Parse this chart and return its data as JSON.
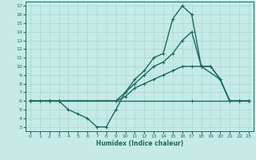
{
  "xlabel": "Humidex (Indice chaleur)",
  "xlim": [
    -0.5,
    23.5
  ],
  "ylim": [
    2.5,
    17.5
  ],
  "yticks": [
    3,
    4,
    5,
    6,
    7,
    8,
    9,
    10,
    11,
    12,
    13,
    14,
    15,
    16,
    17
  ],
  "xticks": [
    0,
    1,
    2,
    3,
    4,
    5,
    6,
    7,
    8,
    9,
    10,
    11,
    12,
    13,
    14,
    15,
    16,
    17,
    18,
    19,
    20,
    21,
    22,
    23
  ],
  "bg_color": "#c6ebe6",
  "grid_color": "#a8d8d2",
  "line_color": "#1a6b5e",
  "line_width": 1.0,
  "marker_size": 2.5,
  "lines": [
    {
      "x": [
        0,
        1,
        2,
        3,
        4,
        5,
        6,
        7,
        8,
        9,
        10,
        11,
        12,
        13,
        14,
        15,
        16,
        17,
        18,
        19,
        20,
        21,
        22,
        23
      ],
      "y": [
        6,
        6,
        6,
        6,
        5,
        4.5,
        4,
        3,
        3,
        5,
        7,
        8.5,
        9.5,
        11,
        11.5,
        15.5,
        17,
        16,
        10,
        10,
        8.5,
        6,
        6,
        6
      ]
    },
    {
      "x": [
        0,
        2,
        3,
        9,
        10,
        11,
        12,
        13,
        14,
        15,
        16,
        17,
        18,
        20,
        21,
        22,
        23
      ],
      "y": [
        6,
        6,
        6,
        6,
        7,
        8,
        9,
        10,
        10.5,
        11.5,
        13,
        14,
        10,
        8.5,
        6,
        6,
        6
      ]
    },
    {
      "x": [
        0,
        2,
        3,
        9,
        10,
        11,
        12,
        13,
        14,
        15,
        16,
        17,
        18,
        19,
        20,
        21,
        22,
        23
      ],
      "y": [
        6,
        6,
        6,
        6,
        6.5,
        7.5,
        8,
        8.5,
        9,
        9.5,
        10,
        10,
        10,
        10,
        8.5,
        6,
        6,
        6
      ]
    },
    {
      "x": [
        0,
        2,
        3,
        17,
        22,
        23
      ],
      "y": [
        6,
        6,
        6,
        6,
        6,
        6
      ]
    }
  ]
}
